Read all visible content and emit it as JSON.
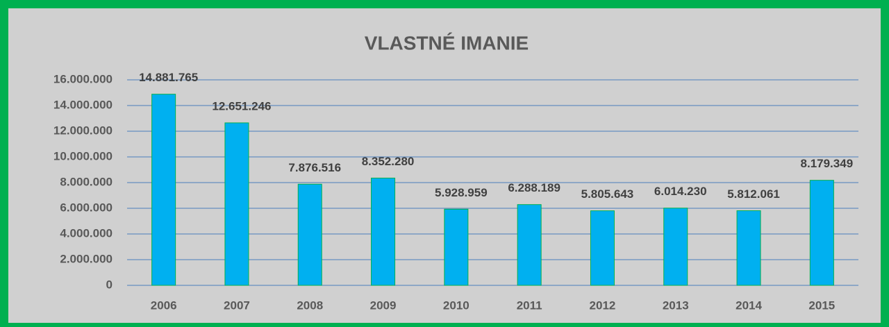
{
  "chart_data": {
    "type": "bar",
    "title": "VLASTNÉ IMANIE",
    "categories": [
      "2006",
      "2007",
      "2008",
      "2009",
      "2010",
      "2011",
      "2012",
      "2013",
      "2014",
      "2015"
    ],
    "values": [
      14881765,
      12651246,
      7876516,
      8352280,
      5928959,
      6288189,
      5805643,
      6014230,
      5812061,
      8179349
    ],
    "value_labels": [
      "14.881.765",
      "12.651.246",
      "7.876.516",
      "8.352.280",
      "5.928.959",
      "6.288.189",
      "5.805.643",
      "6.014.230",
      "5.812.061",
      "8.179.349"
    ],
    "color": "#00b0f0",
    "ylim": [
      0,
      16000000
    ],
    "yticks": [
      0,
      {
        "value": 2000000,
        "label": "2.000.000"
      },
      {
        "value": 4000000,
        "label": "4.000.000"
      },
      {
        "value": 6000000,
        "label": "6.000.000"
      },
      {
        "value": 8000000,
        "label": "8.000.000"
      },
      {
        "value": 10000000,
        "label": "10.000.000"
      },
      {
        "value": 12000000,
        "label": "12.000.000"
      },
      {
        "value": 14000000,
        "label": "14.000.000"
      },
      {
        "value": 16000000,
        "label": "16.000.000"
      }
    ],
    "grid": true
  }
}
